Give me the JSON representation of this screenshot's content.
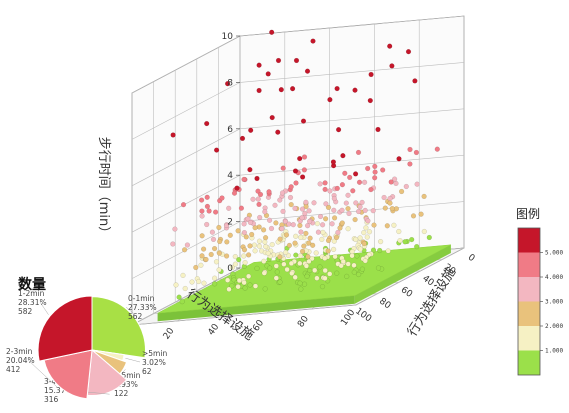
{
  "chart_data": [
    {
      "type": "scatter3d",
      "zlabel": "步行时间（min）",
      "xlabel": "行为选择设施",
      "ylabel": "行为选择设施",
      "xticks": [
        "0",
        "20",
        "40",
        "60",
        "80",
        "100"
      ],
      "yticks": [
        "0",
        "20",
        "40",
        "60",
        "80",
        "100"
      ],
      "zticks": [
        "0",
        "2",
        "4",
        "6",
        "8",
        "10"
      ],
      "xlim": [
        0,
        100
      ],
      "ylim": [
        0,
        100
      ],
      "zlim": [
        0,
        10
      ],
      "legend": {
        "title": "图例",
        "ticks": [
          "1.000",
          "2.000",
          "3.000",
          "4.000",
          "5.000"
        ],
        "colors": [
          "#9be04a",
          "#f6f1c4",
          "#e9c27c",
          "#f3b7c1",
          "#f07b86",
          "#c5162a"
        ]
      }
    },
    {
      "type": "pie",
      "title": "数量",
      "slices": [
        {
          "label": "0-1min",
          "percent": "27.33%",
          "count": "562",
          "value": 562,
          "color": "#a8e045"
        },
        {
          "label": ">5min",
          "percent": "3.02%",
          "count": "62",
          "value": 62,
          "color": "#f6f1c4"
        },
        {
          "label": "4-5min",
          "percent": "5.93%",
          "count": "122",
          "value": 122,
          "color": "#e9c27c"
        },
        {
          "label": "3-4min",
          "percent": "15.37%",
          "count": "316",
          "value": 316,
          "color": "#f3b7c1"
        },
        {
          "label": "2-3min",
          "percent": "20.04%",
          "count": "412",
          "value": 412,
          "color": "#f07b86"
        },
        {
          "label": "1-2min",
          "percent": "28.31%",
          "count": "582",
          "value": 582,
          "color": "#c5162a"
        }
      ]
    }
  ]
}
